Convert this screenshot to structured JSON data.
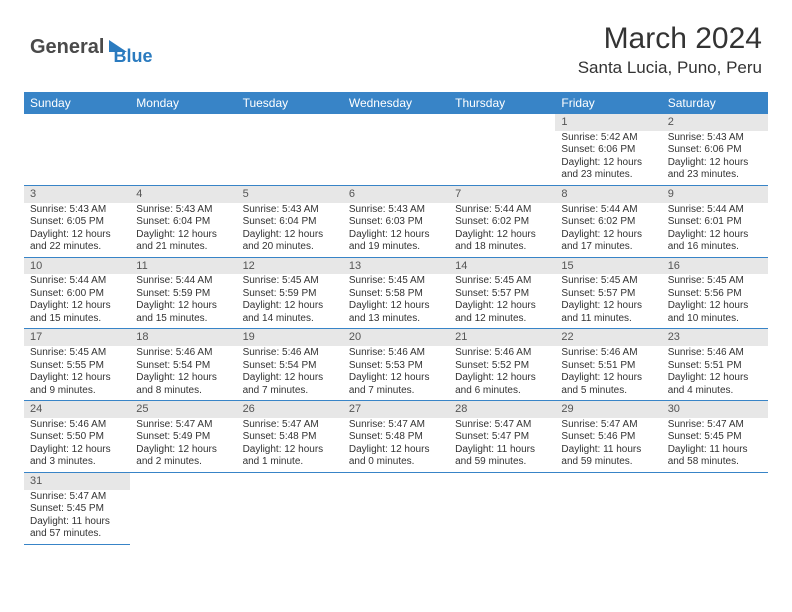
{
  "logo": {
    "part1": "General",
    "part2": "Blue"
  },
  "title": "March 2024",
  "location": "Santa Lucia, Puno, Peru",
  "colors": {
    "header_bg": "#3884c7",
    "header_text": "#ffffff",
    "daynum_bg": "#e7e7e7",
    "row_border": "#3884c7",
    "page_bg": "#ffffff",
    "logo_gray": "#4a4a4a",
    "logo_blue": "#2b7bbf"
  },
  "daynames": [
    "Sunday",
    "Monday",
    "Tuesday",
    "Wednesday",
    "Thursday",
    "Friday",
    "Saturday"
  ],
  "weeks": [
    {
      "nums": [
        "",
        "",
        "",
        "",
        "",
        "1",
        "2"
      ],
      "cells": [
        {
          "sunrise": "",
          "sunset": "",
          "daylight1": "",
          "daylight2": ""
        },
        {
          "sunrise": "",
          "sunset": "",
          "daylight1": "",
          "daylight2": ""
        },
        {
          "sunrise": "",
          "sunset": "",
          "daylight1": "",
          "daylight2": ""
        },
        {
          "sunrise": "",
          "sunset": "",
          "daylight1": "",
          "daylight2": ""
        },
        {
          "sunrise": "",
          "sunset": "",
          "daylight1": "",
          "daylight2": ""
        },
        {
          "sunrise": "Sunrise: 5:42 AM",
          "sunset": "Sunset: 6:06 PM",
          "daylight1": "Daylight: 12 hours",
          "daylight2": "and 23 minutes."
        },
        {
          "sunrise": "Sunrise: 5:43 AM",
          "sunset": "Sunset: 6:06 PM",
          "daylight1": "Daylight: 12 hours",
          "daylight2": "and 23 minutes."
        }
      ]
    },
    {
      "nums": [
        "3",
        "4",
        "5",
        "6",
        "7",
        "8",
        "9"
      ],
      "cells": [
        {
          "sunrise": "Sunrise: 5:43 AM",
          "sunset": "Sunset: 6:05 PM",
          "daylight1": "Daylight: 12 hours",
          "daylight2": "and 22 minutes."
        },
        {
          "sunrise": "Sunrise: 5:43 AM",
          "sunset": "Sunset: 6:04 PM",
          "daylight1": "Daylight: 12 hours",
          "daylight2": "and 21 minutes."
        },
        {
          "sunrise": "Sunrise: 5:43 AM",
          "sunset": "Sunset: 6:04 PM",
          "daylight1": "Daylight: 12 hours",
          "daylight2": "and 20 minutes."
        },
        {
          "sunrise": "Sunrise: 5:43 AM",
          "sunset": "Sunset: 6:03 PM",
          "daylight1": "Daylight: 12 hours",
          "daylight2": "and 19 minutes."
        },
        {
          "sunrise": "Sunrise: 5:44 AM",
          "sunset": "Sunset: 6:02 PM",
          "daylight1": "Daylight: 12 hours",
          "daylight2": "and 18 minutes."
        },
        {
          "sunrise": "Sunrise: 5:44 AM",
          "sunset": "Sunset: 6:02 PM",
          "daylight1": "Daylight: 12 hours",
          "daylight2": "and 17 minutes."
        },
        {
          "sunrise": "Sunrise: 5:44 AM",
          "sunset": "Sunset: 6:01 PM",
          "daylight1": "Daylight: 12 hours",
          "daylight2": "and 16 minutes."
        }
      ]
    },
    {
      "nums": [
        "10",
        "11",
        "12",
        "13",
        "14",
        "15",
        "16"
      ],
      "cells": [
        {
          "sunrise": "Sunrise: 5:44 AM",
          "sunset": "Sunset: 6:00 PM",
          "daylight1": "Daylight: 12 hours",
          "daylight2": "and 15 minutes."
        },
        {
          "sunrise": "Sunrise: 5:44 AM",
          "sunset": "Sunset: 5:59 PM",
          "daylight1": "Daylight: 12 hours",
          "daylight2": "and 15 minutes."
        },
        {
          "sunrise": "Sunrise: 5:45 AM",
          "sunset": "Sunset: 5:59 PM",
          "daylight1": "Daylight: 12 hours",
          "daylight2": "and 14 minutes."
        },
        {
          "sunrise": "Sunrise: 5:45 AM",
          "sunset": "Sunset: 5:58 PM",
          "daylight1": "Daylight: 12 hours",
          "daylight2": "and 13 minutes."
        },
        {
          "sunrise": "Sunrise: 5:45 AM",
          "sunset": "Sunset: 5:57 PM",
          "daylight1": "Daylight: 12 hours",
          "daylight2": "and 12 minutes."
        },
        {
          "sunrise": "Sunrise: 5:45 AM",
          "sunset": "Sunset: 5:57 PM",
          "daylight1": "Daylight: 12 hours",
          "daylight2": "and 11 minutes."
        },
        {
          "sunrise": "Sunrise: 5:45 AM",
          "sunset": "Sunset: 5:56 PM",
          "daylight1": "Daylight: 12 hours",
          "daylight2": "and 10 minutes."
        }
      ]
    },
    {
      "nums": [
        "17",
        "18",
        "19",
        "20",
        "21",
        "22",
        "23"
      ],
      "cells": [
        {
          "sunrise": "Sunrise: 5:45 AM",
          "sunset": "Sunset: 5:55 PM",
          "daylight1": "Daylight: 12 hours",
          "daylight2": "and 9 minutes."
        },
        {
          "sunrise": "Sunrise: 5:46 AM",
          "sunset": "Sunset: 5:54 PM",
          "daylight1": "Daylight: 12 hours",
          "daylight2": "and 8 minutes."
        },
        {
          "sunrise": "Sunrise: 5:46 AM",
          "sunset": "Sunset: 5:54 PM",
          "daylight1": "Daylight: 12 hours",
          "daylight2": "and 7 minutes."
        },
        {
          "sunrise": "Sunrise: 5:46 AM",
          "sunset": "Sunset: 5:53 PM",
          "daylight1": "Daylight: 12 hours",
          "daylight2": "and 7 minutes."
        },
        {
          "sunrise": "Sunrise: 5:46 AM",
          "sunset": "Sunset: 5:52 PM",
          "daylight1": "Daylight: 12 hours",
          "daylight2": "and 6 minutes."
        },
        {
          "sunrise": "Sunrise: 5:46 AM",
          "sunset": "Sunset: 5:51 PM",
          "daylight1": "Daylight: 12 hours",
          "daylight2": "and 5 minutes."
        },
        {
          "sunrise": "Sunrise: 5:46 AM",
          "sunset": "Sunset: 5:51 PM",
          "daylight1": "Daylight: 12 hours",
          "daylight2": "and 4 minutes."
        }
      ]
    },
    {
      "nums": [
        "24",
        "25",
        "26",
        "27",
        "28",
        "29",
        "30"
      ],
      "cells": [
        {
          "sunrise": "Sunrise: 5:46 AM",
          "sunset": "Sunset: 5:50 PM",
          "daylight1": "Daylight: 12 hours",
          "daylight2": "and 3 minutes."
        },
        {
          "sunrise": "Sunrise: 5:47 AM",
          "sunset": "Sunset: 5:49 PM",
          "daylight1": "Daylight: 12 hours",
          "daylight2": "and 2 minutes."
        },
        {
          "sunrise": "Sunrise: 5:47 AM",
          "sunset": "Sunset: 5:48 PM",
          "daylight1": "Daylight: 12 hours",
          "daylight2": "and 1 minute."
        },
        {
          "sunrise": "Sunrise: 5:47 AM",
          "sunset": "Sunset: 5:48 PM",
          "daylight1": "Daylight: 12 hours",
          "daylight2": "and 0 minutes."
        },
        {
          "sunrise": "Sunrise: 5:47 AM",
          "sunset": "Sunset: 5:47 PM",
          "daylight1": "Daylight: 11 hours",
          "daylight2": "and 59 minutes."
        },
        {
          "sunrise": "Sunrise: 5:47 AM",
          "sunset": "Sunset: 5:46 PM",
          "daylight1": "Daylight: 11 hours",
          "daylight2": "and 59 minutes."
        },
        {
          "sunrise": "Sunrise: 5:47 AM",
          "sunset": "Sunset: 5:45 PM",
          "daylight1": "Daylight: 11 hours",
          "daylight2": "and 58 minutes."
        }
      ]
    },
    {
      "nums": [
        "31",
        "",
        "",
        "",
        "",
        "",
        ""
      ],
      "cells": [
        {
          "sunrise": "Sunrise: 5:47 AM",
          "sunset": "Sunset: 5:45 PM",
          "daylight1": "Daylight: 11 hours",
          "daylight2": "and 57 minutes."
        },
        {
          "sunrise": "",
          "sunset": "",
          "daylight1": "",
          "daylight2": ""
        },
        {
          "sunrise": "",
          "sunset": "",
          "daylight1": "",
          "daylight2": ""
        },
        {
          "sunrise": "",
          "sunset": "",
          "daylight1": "",
          "daylight2": ""
        },
        {
          "sunrise": "",
          "sunset": "",
          "daylight1": "",
          "daylight2": ""
        },
        {
          "sunrise": "",
          "sunset": "",
          "daylight1": "",
          "daylight2": ""
        },
        {
          "sunrise": "",
          "sunset": "",
          "daylight1": "",
          "daylight2": ""
        }
      ]
    }
  ]
}
